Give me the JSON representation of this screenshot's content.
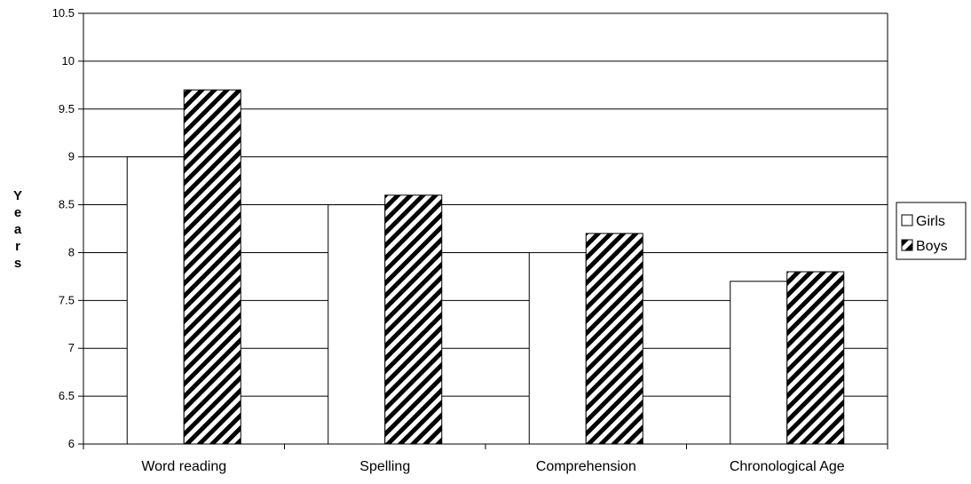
{
  "chart_data": {
    "type": "bar",
    "title": "",
    "xlabel": "",
    "ylabel": "Years",
    "categories": [
      "Word reading",
      "Spelling",
      "Comprehension",
      "Chronological Age"
    ],
    "series": [
      {
        "name": "Girls",
        "values": [
          9.0,
          8.5,
          8.0,
          7.7
        ],
        "fill": "#ffffff",
        "pattern": "none"
      },
      {
        "name": "Boys",
        "values": [
          9.7,
          8.6,
          8.2,
          7.8
        ],
        "fill": "#000000",
        "pattern": "diagonal-stripes"
      }
    ],
    "ylim": [
      6,
      10.5
    ],
    "yticks": [
      "6",
      "6.5",
      "7",
      "7.5",
      "8",
      "8.5",
      "9",
      "9.5",
      "10",
      "10.5"
    ],
    "grid": true,
    "legend_position": "right"
  }
}
